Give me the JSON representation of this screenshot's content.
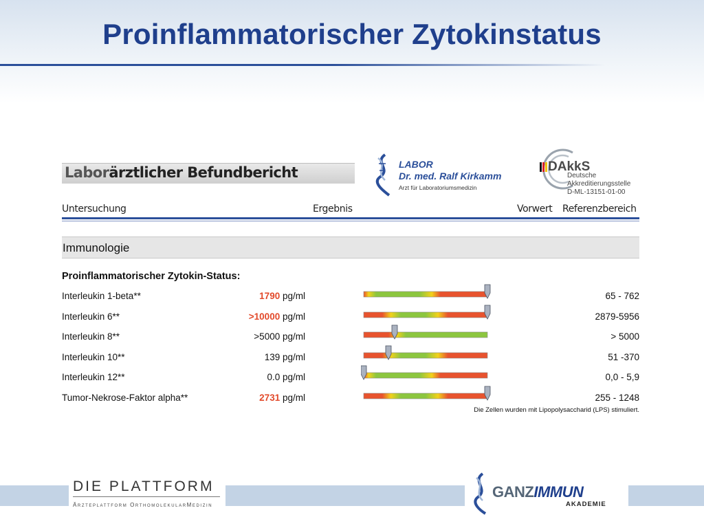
{
  "slide": {
    "title": "Proinflammatorischer Zytokinstatus",
    "title_color": "#1f3f8c"
  },
  "report": {
    "heading_part1": "Labor",
    "heading_part2": "ärztlicher Befundbericht",
    "labor_logo": {
      "line1": "LABOR",
      "line2_prefix": "Dr. med. ",
      "line2_name": "Ralf Kirkamm",
      "line3": "Arzt für Laboratoriumsmedizin",
      "icon": "helix-swirl-icon"
    },
    "dakks_logo": {
      "name": "DAkkS",
      "line1": "Deutsche",
      "line2": "Akkreditierungsstelle",
      "line3": "D-ML-13151-01-00",
      "icon": "dakks-arc-icon"
    },
    "columns": {
      "test": "Untersuchung",
      "result": "Ergebnis",
      "previous": "Vorwert",
      "reference": "Referenzbereich"
    },
    "section": "Immunologie",
    "group": "Proinflammatorischer Zytokin-Status:",
    "rows": [
      {
        "name": "Interleukin 1-beta**",
        "value": "1790",
        "unit": "pg/ml",
        "high": true,
        "ref": "65 - 762",
        "marker": 1.0,
        "bar": "green-red"
      },
      {
        "name": "Interleukin 6**",
        "value": ">10000",
        "unit": "pg/ml",
        "high": true,
        "ref": "2879-5956",
        "marker": 1.0,
        "bar": "red-green-red"
      },
      {
        "name": "Interleukin 8**",
        "value": ">5000",
        "unit": "pg/ml",
        "high": false,
        "ref": "> 5000",
        "marker": 0.25,
        "bar": "red-green"
      },
      {
        "name": "Interleukin 10**",
        "value": "139",
        "unit": "pg/ml",
        "high": false,
        "ref": "51 -370",
        "marker": 0.2,
        "bar": "red-green-red"
      },
      {
        "name": "Interleukin 12**",
        "value": "0.0",
        "unit": "pg/ml",
        "high": false,
        "ref": "0,0 - 5,9",
        "marker": 0.0,
        "bar": "green-red"
      },
      {
        "name": "Tumor-Nekrose-Faktor alpha**",
        "value": "2731",
        "unit": "pg/ml",
        "high": true,
        "ref": "255 - 1248",
        "marker": 1.0,
        "bar": "red-green-red"
      }
    ],
    "footnote": "Die Zellen wurden mit Lipopolysaccharid (LPS) stimuliert.",
    "colors": {
      "green": "#8cc63f",
      "red": "#e8532e",
      "yellow": "#f2d21b",
      "high_value": "#e2492a"
    }
  },
  "footer": {
    "plattform_title": "DIE PLATTFORM",
    "plattform_sub": "Ärzteplattform OrthomolekularMedizin",
    "brand_part1": "GANZ",
    "brand_part2": "IMMUN",
    "brand_sub": "AKADEMIE",
    "icon": "helix-swirl-icon"
  }
}
